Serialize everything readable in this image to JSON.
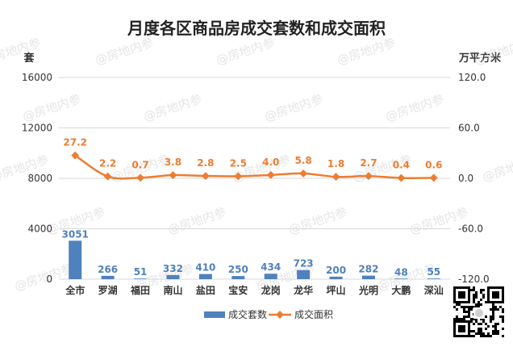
{
  "chart_data": {
    "type": "bar+line",
    "title": "月度各区商品房成交套数和成交面积",
    "left_axis": {
      "unit": "套",
      "ylim": [
        0,
        16000
      ],
      "ticks": [
        0,
        4000,
        8000,
        12000,
        16000
      ]
    },
    "right_axis": {
      "unit": "万平方米",
      "ylim": [
        -120,
        120
      ],
      "ticks": [
        "-120.0",
        "-60.0",
        "0.0",
        "60.0",
        "120.0"
      ]
    },
    "categories": [
      "全市",
      "罗湖",
      "福田",
      "南山",
      "盐田",
      "宝安",
      "龙岗",
      "龙华",
      "坪山",
      "光明",
      "大鹏",
      "深汕"
    ],
    "series": [
      {
        "name": "成交套数",
        "kind": "bar",
        "axis": "left",
        "color": "#4f81bd",
        "label_color": "#4f81bd",
        "values": [
          3051,
          266,
          51,
          332,
          410,
          250,
          434,
          723,
          200,
          282,
          48,
          55
        ]
      },
      {
        "name": "成交面积",
        "kind": "line",
        "axis": "right",
        "color": "#ed7d31",
        "label_color": "#ed7d31",
        "values": [
          27.2,
          2.2,
          0.7,
          3.8,
          2.8,
          2.5,
          4.0,
          5.8,
          1.8,
          2.7,
          0.4,
          0.6
        ],
        "labels": [
          "27.2",
          "2.2",
          "0.7",
          "3.8",
          "2.8",
          "2.5",
          "4.0",
          "5.8",
          "1.8",
          "2.7",
          "0.4",
          "0.6"
        ]
      }
    ],
    "grid": true,
    "legend": "bottom"
  },
  "watermark": "@房地内参"
}
